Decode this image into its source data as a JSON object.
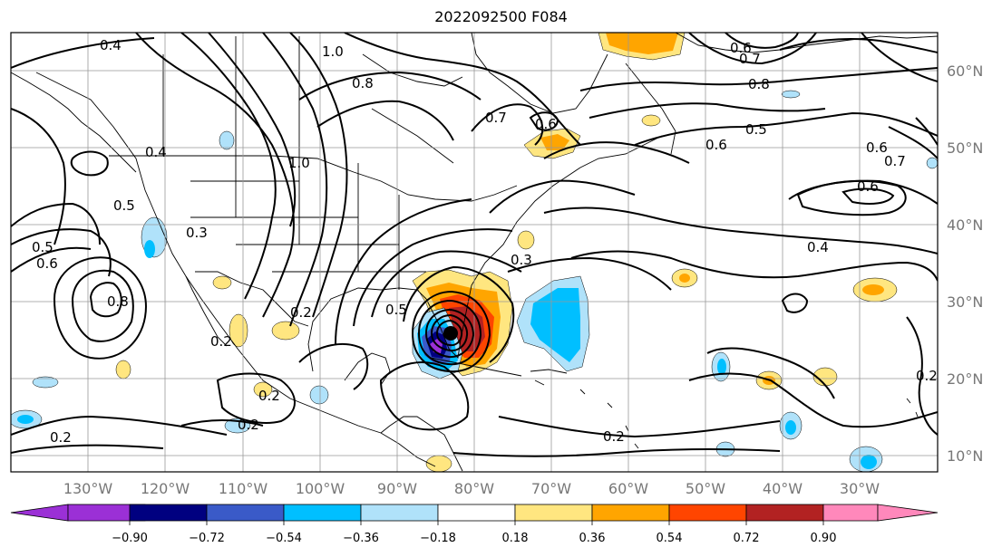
{
  "title": "2022092500 F084",
  "map": {
    "lon_labels": [
      "130°W",
      "120°W",
      "110°W",
      "100°W",
      "90°W",
      "80°W",
      "70°W",
      "60°W",
      "50°W",
      "40°W",
      "30°W"
    ],
    "lat_labels": [
      "60°N",
      "50°N",
      "40°N",
      "30°N",
      "20°N",
      "10°N"
    ],
    "storm_marker": "filled-circle",
    "contour_labels": [
      "0.4",
      "1.0",
      "0.6",
      "0.7",
      "0.8",
      "0.7",
      "0.8",
      "0.6",
      "0.5",
      "0.6",
      "0.7",
      "0.6",
      "0.4",
      "0.4",
      "0.5",
      "0.6",
      "1.0",
      "0.5",
      "0.3",
      "0.8",
      "0.2",
      "0.2",
      "0.5",
      "0.2",
      "0.2",
      "0.2",
      "0.2",
      "0.6",
      "0.3",
      "0.2"
    ]
  },
  "colorbar": {
    "tick_labels": [
      "−0.90",
      "−0.72",
      "−0.54",
      "−0.36",
      "−0.18",
      "0.18",
      "0.36",
      "0.54",
      "0.72",
      "0.90"
    ],
    "colors": [
      "#9b30d6",
      "#000080",
      "#3a5ac8",
      "#00bfff",
      "#b0e2fa",
      "#ffffff",
      "#ffe680",
      "#ffa500",
      "#ff4500",
      "#b22222",
      "#ff88bb"
    ]
  }
}
